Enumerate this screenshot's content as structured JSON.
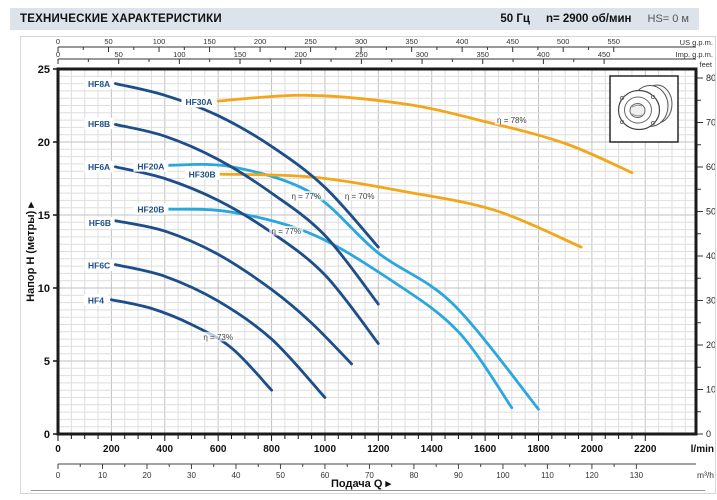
{
  "header": {
    "title": "ТЕХНИЧЕСКИЕ ХАРАКТЕРИСТИКИ",
    "frequency": "50 Гц",
    "speed": "n= 2900 об/мин",
    "suction_head": "HS= 0 м"
  },
  "colors": {
    "navy": "#1d4e89",
    "cyan": "#2aa7dd",
    "orange": "#f2a71b",
    "header_bg": "#dde3eb",
    "grid_minor": "#dedede",
    "grid_major": "#c2c2c2",
    "plot_border": "#1a1a1a"
  },
  "chart_data": {
    "type": "line",
    "title": "",
    "xlabel": "Подача Q",
    "ylabel": "Напор H (метры)",
    "x_range_lmin": [
      0,
      2390
    ],
    "y_range_m": [
      0,
      25
    ],
    "grid": {
      "minor_lmin": 50,
      "minor_m": 0.5,
      "major_lmin": 200,
      "major_m": 5,
      "grid_on": true
    },
    "axes": {
      "top_usgpm": {
        "unit": "US g.p.m.",
        "lmin_per_unit": 3.785,
        "minor_step": 25,
        "ticks": [
          0,
          50,
          100,
          150,
          200,
          250,
          300,
          350,
          400,
          450,
          500,
          550
        ]
      },
      "top_impgpm": {
        "unit": "Imp. g.p.m.",
        "lmin_per_unit": 4.546,
        "minor_step": 25,
        "ticks": [
          0,
          50,
          100,
          150,
          200,
          250,
          300,
          350,
          400,
          450
        ]
      },
      "bottom_lmin": {
        "unit": "l/min",
        "minor_step": 50,
        "ticks": [
          0,
          200,
          400,
          600,
          800,
          1000,
          1200,
          1400,
          1600,
          1800,
          2000,
          2200
        ]
      },
      "bottom_m3h": {
        "unit": "m³/h",
        "lmin_per_unit": 16.667,
        "minor_step": 5,
        "ticks": [
          0,
          10,
          20,
          30,
          40,
          50,
          60,
          70,
          80,
          90,
          100,
          110,
          120,
          130
        ]
      },
      "right_feet": {
        "unit": "feet",
        "m_per_unit": 0.3048,
        "minor_step": 5,
        "ticks": [
          0,
          10,
          20,
          30,
          40,
          50,
          60,
          70,
          80
        ]
      },
      "left_m": {
        "unit": "",
        "ticks": [
          0,
          5,
          10,
          15,
          20,
          25
        ]
      }
    },
    "series": [
      {
        "name": "HF20A",
        "color_key": "cyan",
        "points": [
          [
            410,
            18.4
          ],
          [
            650,
            18.3
          ],
          [
            950,
            16.5
          ],
          [
            1200,
            12.4
          ],
          [
            1480,
            8.9
          ],
          [
            1800,
            1.7
          ]
        ],
        "label_at": [
          348,
          18.35
        ]
      },
      {
        "name": "HF20B",
        "color_key": "cyan",
        "points": [
          [
            410,
            15.4
          ],
          [
            650,
            15.2
          ],
          [
            950,
            13.7
          ],
          [
            1250,
            10.5
          ],
          [
            1500,
            7.0
          ],
          [
            1700,
            1.8
          ]
        ],
        "label_at": [
          348,
          15.4
        ]
      },
      {
        "name": "HF30A",
        "color_key": "orange",
        "points": [
          [
            600,
            22.8
          ],
          [
            930,
            23.2
          ],
          [
            1300,
            22.6
          ],
          [
            1600,
            21.4
          ],
          [
            1900,
            19.9
          ],
          [
            2150,
            17.9
          ]
        ],
        "label_at": [
          528,
          22.75
        ]
      },
      {
        "name": "HF30B",
        "color_key": "orange",
        "points": [
          [
            600,
            17.8
          ],
          [
            950,
            17.6
          ],
          [
            1300,
            16.6
          ],
          [
            1640,
            15.3
          ],
          [
            1960,
            12.8
          ]
        ],
        "label_at": [
          540,
          17.8
        ]
      },
      {
        "name": "HF8A",
        "color_key": "navy",
        "points": [
          [
            215,
            24.0
          ],
          [
            400,
            23.2
          ],
          [
            600,
            21.8
          ],
          [
            800,
            19.7
          ],
          [
            1000,
            16.9
          ],
          [
            1200,
            12.8
          ]
        ],
        "label_at": [
          154,
          24.0
        ]
      },
      {
        "name": "HF8B",
        "color_key": "navy",
        "points": [
          [
            215,
            21.2
          ],
          [
            400,
            20.4
          ],
          [
            600,
            18.8
          ],
          [
            800,
            16.5
          ],
          [
            1000,
            13.6
          ],
          [
            1200,
            8.9
          ]
        ],
        "label_at": [
          154,
          21.25
        ]
      },
      {
        "name": "HF6A",
        "color_key": "navy",
        "points": [
          [
            215,
            18.3
          ],
          [
            400,
            17.5
          ],
          [
            600,
            16.0
          ],
          [
            800,
            13.8
          ],
          [
            1000,
            10.9
          ],
          [
            1200,
            6.2
          ]
        ],
        "label_at": [
          154,
          18.3
        ]
      },
      {
        "name": "HF6B",
        "color_key": "navy",
        "points": [
          [
            215,
            14.6
          ],
          [
            400,
            13.9
          ],
          [
            600,
            12.3
          ],
          [
            800,
            9.9
          ],
          [
            950,
            7.6
          ],
          [
            1100,
            4.8
          ]
        ],
        "label_at": [
          157,
          14.45
        ]
      },
      {
        "name": "HF6C",
        "color_key": "navy",
        "points": [
          [
            215,
            11.6
          ],
          [
            400,
            10.8
          ],
          [
            600,
            9.1
          ],
          [
            800,
            6.5
          ],
          [
            1000,
            2.5
          ]
        ],
        "label_at": [
          154,
          11.55
        ]
      },
      {
        "name": "HF4",
        "color_key": "navy",
        "points": [
          [
            200,
            9.2
          ],
          [
            350,
            8.6
          ],
          [
            500,
            7.5
          ],
          [
            650,
            5.9
          ],
          [
            800,
            3.0
          ]
        ],
        "label_at": [
          142,
          9.15
        ]
      }
    ],
    "efficiency_labels": [
      {
        "text": "η = 78%",
        "at": [
          1700,
          21.5
        ]
      },
      {
        "text": "η = 77%",
        "at": [
          930,
          16.3
        ]
      },
      {
        "text": "η = 70%",
        "at": [
          1130,
          16.3
        ]
      },
      {
        "text": "η = 77%",
        "at": [
          855,
          13.9
        ]
      },
      {
        "text": "η = 73%",
        "at": [
          600,
          6.65
        ]
      }
    ]
  }
}
